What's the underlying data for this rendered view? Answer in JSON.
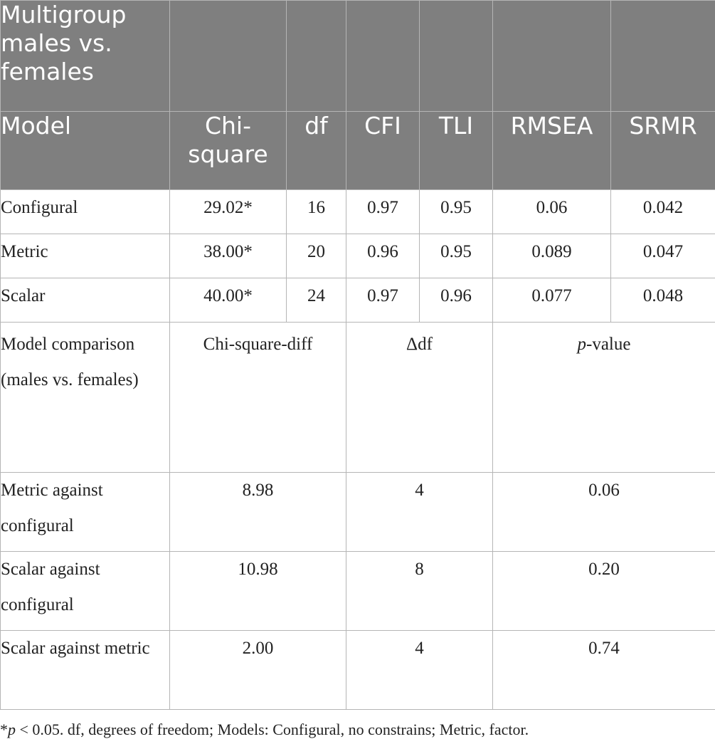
{
  "table": {
    "group_title": "Multigroup males vs. females",
    "header": [
      "Model",
      "Chi-square",
      "df",
      "CFI",
      "TLI",
      "RMSEA",
      "SRMR"
    ],
    "fit_rows": [
      {
        "model": "Configural",
        "chi_square": "29.02*",
        "df": "16",
        "cfi": "0.97",
        "tli": "0.95",
        "rmsea": "0.06",
        "srmr": "0.042"
      },
      {
        "model": "Metric",
        "chi_square": "38.00*",
        "df": "20",
        "cfi": "0.96",
        "tli": "0.95",
        "rmsea": "0.089",
        "srmr": "0.047"
      },
      {
        "model": "Scalar",
        "chi_square": "40.00*",
        "df": "24",
        "cfi": "0.97",
        "tli": "0.96",
        "rmsea": "0.077",
        "srmr": "0.048"
      }
    ],
    "comparison_header": {
      "label": "Model comparison (males vs. females)",
      "chi_diff": "Chi-square-diff",
      "delta_df": "Δdf",
      "p_italic": "p",
      "p_rest": "-value"
    },
    "comparison_rows": [
      {
        "label": "Metric against configural",
        "chi_diff": "8.98",
        "delta_df": "4",
        "p_value": "0.06"
      },
      {
        "label": "Scalar against configural",
        "chi_diff": "10.98",
        "delta_df": "8",
        "p_value": "0.20"
      },
      {
        "label": "Scalar against metric",
        "chi_diff": "2.00",
        "delta_df": "4",
        "p_value": "0.74"
      }
    ]
  },
  "footnote": {
    "star": "*",
    "p": "p",
    "text": " < 0.05. df, degrees of freedom; Models: Configural, no constrains; Metric, factor."
  }
}
